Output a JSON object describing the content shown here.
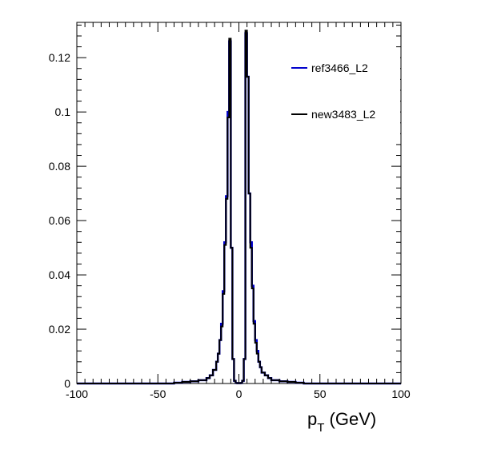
{
  "chart_data": {
    "type": "histogram",
    "title": "",
    "xlabel": {
      "main": "p",
      "sub": "T",
      "unit": " (GeV)"
    },
    "ylabel": "",
    "xlim": [
      -100,
      100
    ],
    "ylim": [
      0,
      0.133
    ],
    "grid": false,
    "legend_placement": "top-right",
    "x_ticks": [
      -100,
      -50,
      0,
      50,
      100
    ],
    "x_tick_labels": [
      "-100",
      "-50",
      "0",
      "50",
      "100"
    ],
    "y_ticks": [
      0,
      0.02,
      0.04,
      0.06,
      0.08,
      0.1,
      0.12
    ],
    "y_tick_labels": [
      "0",
      "0.02",
      "0.04",
      "0.06",
      "0.08",
      "0.1",
      "0.12"
    ],
    "bin_edges": [
      -40,
      -35,
      -30,
      -25,
      -20,
      -18,
      -16,
      -14,
      -13,
      -12,
      -11,
      -10,
      -9,
      -8,
      -7,
      -6,
      -5,
      -4,
      -3,
      -2,
      -1,
      0,
      1,
      2,
      3,
      4,
      5,
      6,
      7,
      8,
      9,
      10,
      11,
      12,
      13,
      14,
      16,
      18,
      20,
      25,
      30,
      35,
      40
    ],
    "series": [
      {
        "name": "ref3466_L2",
        "color": "#0000cc",
        "values": [
          0.0003,
          0.0006,
          0.0008,
          0.0012,
          0.002,
          0.003,
          0.005,
          0.008,
          0.011,
          0.016,
          0.022,
          0.034,
          0.052,
          0.069,
          0.1,
          0.126,
          0.05,
          0.009,
          0.001,
          0.0002,
          0.0001,
          0.0001,
          0.0002,
          0.001,
          0.009,
          0.129,
          0.113,
          0.07,
          0.052,
          0.036,
          0.023,
          0.016,
          0.012,
          0.008,
          0.006,
          0.004,
          0.003,
          0.002,
          0.0012,
          0.0008,
          0.0006,
          0.0003
        ]
      },
      {
        "name": "new3483_L2",
        "color": "#000000",
        "values": [
          0.0003,
          0.0006,
          0.0008,
          0.0012,
          0.002,
          0.003,
          0.005,
          0.008,
          0.011,
          0.016,
          0.021,
          0.033,
          0.051,
          0.068,
          0.098,
          0.127,
          0.05,
          0.009,
          0.001,
          0.0002,
          0.0001,
          0.0001,
          0.0002,
          0.001,
          0.009,
          0.13,
          0.113,
          0.07,
          0.05,
          0.035,
          0.022,
          0.015,
          0.011,
          0.008,
          0.006,
          0.004,
          0.003,
          0.002,
          0.0012,
          0.0008,
          0.0006,
          0.0003
        ]
      }
    ]
  }
}
